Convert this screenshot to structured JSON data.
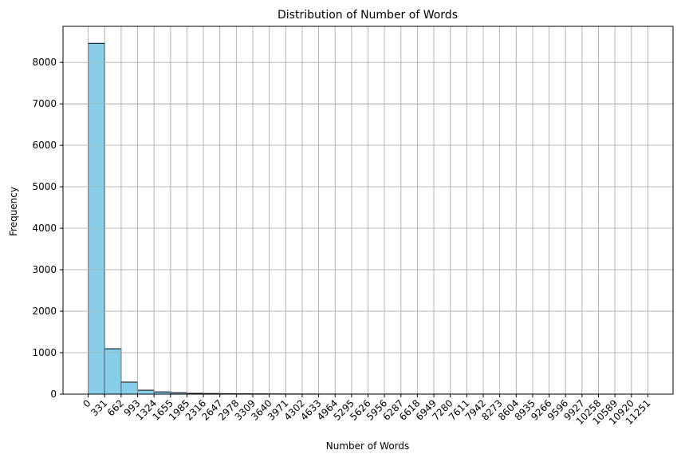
{
  "chart_data": {
    "type": "bar",
    "title": "Distribution of Number of Words",
    "xlabel": "Number of Words",
    "ylabel": "Frequency",
    "bin_edges": [
      0,
      331,
      662,
      993,
      1324,
      1655,
      1985,
      2316,
      2647,
      2978,
      3309,
      3640,
      3971,
      4302,
      4633,
      4964,
      5295,
      5626,
      5956,
      6287,
      6618,
      6949,
      7280,
      7611,
      7942,
      8273,
      8604,
      8935,
      9266,
      9596,
      9927,
      10258,
      10589,
      10920,
      11251
    ],
    "x_tick_labels": [
      "0",
      "331",
      "662",
      "993",
      "1324",
      "1655",
      "1985",
      "2316",
      "2647",
      "2978",
      "3309",
      "3640",
      "3971",
      "4302",
      "4633",
      "4964",
      "5295",
      "5626",
      "5956",
      "6287",
      "6618",
      "6949",
      "7280",
      "7611",
      "7942",
      "8273",
      "8604",
      "8935",
      "9266",
      "9596",
      "9927",
      "10258",
      "10589",
      "10920",
      "11251"
    ],
    "values": [
      8460,
      1095,
      290,
      95,
      55,
      35,
      20,
      15,
      12,
      10,
      8,
      6,
      5,
      4,
      3,
      2,
      2,
      2,
      3,
      2,
      1,
      2,
      1,
      2,
      2,
      1,
      2,
      1,
      1,
      1,
      1,
      1,
      1,
      1
    ],
    "ylim": [
      0,
      8870
    ],
    "y_ticks": [
      0,
      1000,
      2000,
      3000,
      4000,
      5000,
      6000,
      7000,
      8000
    ],
    "y_tick_labels": [
      "0",
      "1000",
      "2000",
      "3000",
      "4000",
      "5000",
      "6000",
      "7000",
      "8000"
    ],
    "grid": true,
    "colors": {
      "bar": "#87ceeb",
      "edge": "#000000",
      "grid": "#b0b0b0"
    }
  }
}
